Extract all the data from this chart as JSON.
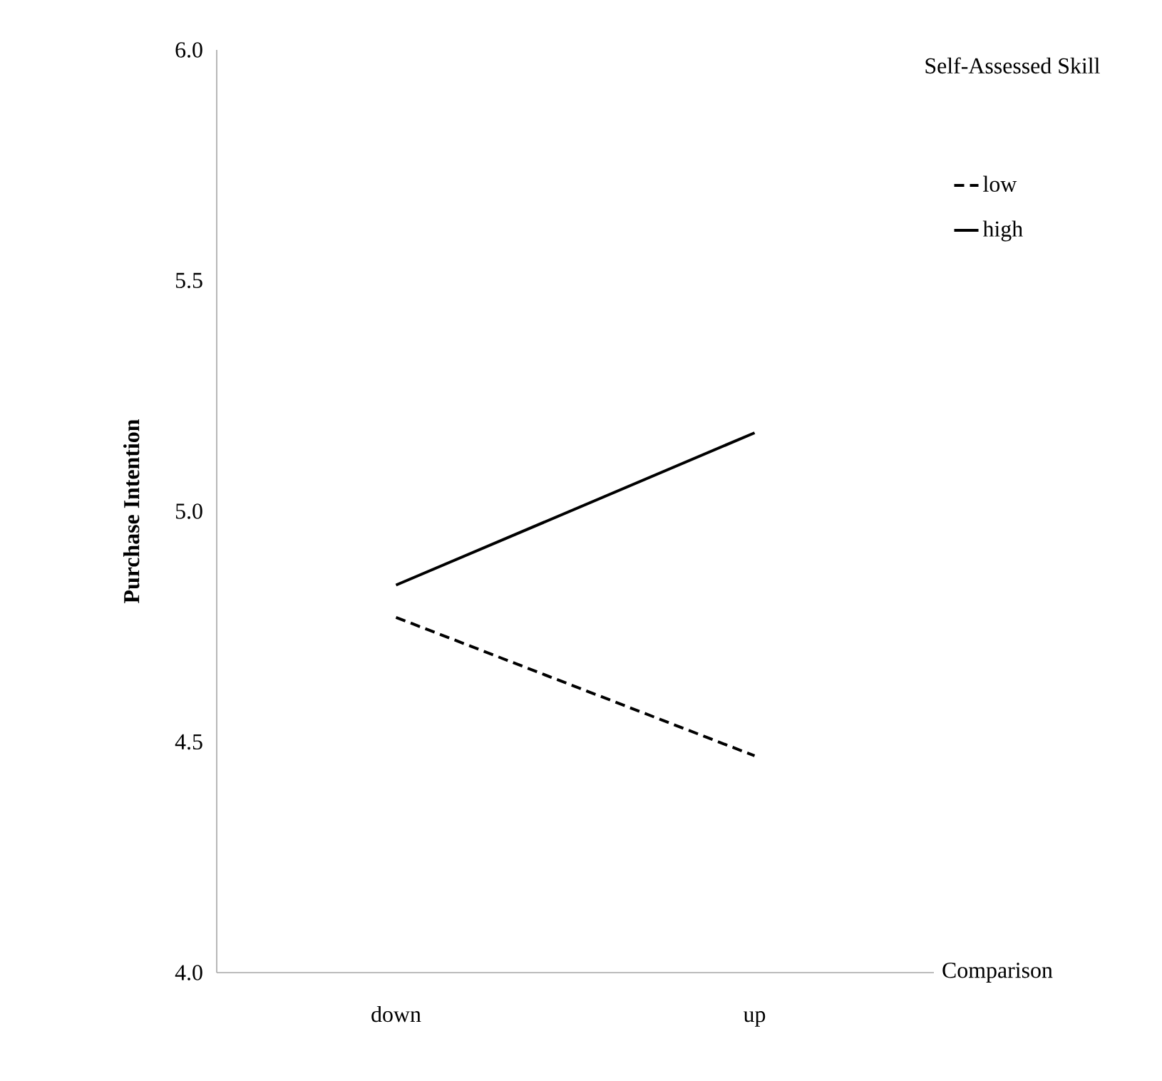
{
  "chart_data": {
    "type": "line",
    "xlabel": "Comparison",
    "ylabel": "Purchase Intention",
    "legend_title": "Self-Assessed Skill",
    "categories": [
      "down",
      "up"
    ],
    "series": [
      {
        "name": "low",
        "color": "#000000",
        "line_style": "dashed",
        "values": [
          4.77,
          4.47
        ]
      },
      {
        "name": "high",
        "color": "#000000",
        "line_style": "solid",
        "values": [
          4.84,
          5.17
        ]
      }
    ],
    "ylim": [
      4,
      6
    ],
    "yticks": [
      {
        "value": 4,
        "label": "4.0"
      },
      {
        "value": 4.5,
        "label": "4.5"
      },
      {
        "value": 5,
        "label": "5.0"
      },
      {
        "value": 5.5,
        "label": "5.5"
      },
      {
        "value": 6,
        "label": "6.0"
      }
    ],
    "grid": false,
    "legend": "top right",
    "marker": "none"
  }
}
